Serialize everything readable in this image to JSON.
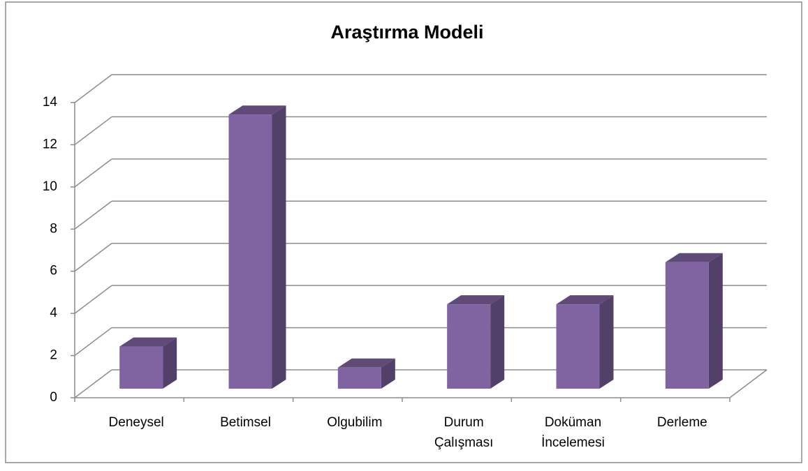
{
  "chart_data": {
    "type": "bar3d",
    "title": "Araştırma Modeli",
    "categories": [
      "Deneysel",
      "Betimsel",
      "Olgubilim",
      "Durum Çalışması",
      "Doküman İncelemesi",
      "Derleme"
    ],
    "values": [
      2,
      13,
      1,
      4,
      4,
      6
    ],
    "color": "#8064a2",
    "ylim": [
      0,
      14
    ],
    "yticks": [
      0,
      2,
      4,
      6,
      8,
      10,
      12,
      14
    ],
    "grid": true
  }
}
